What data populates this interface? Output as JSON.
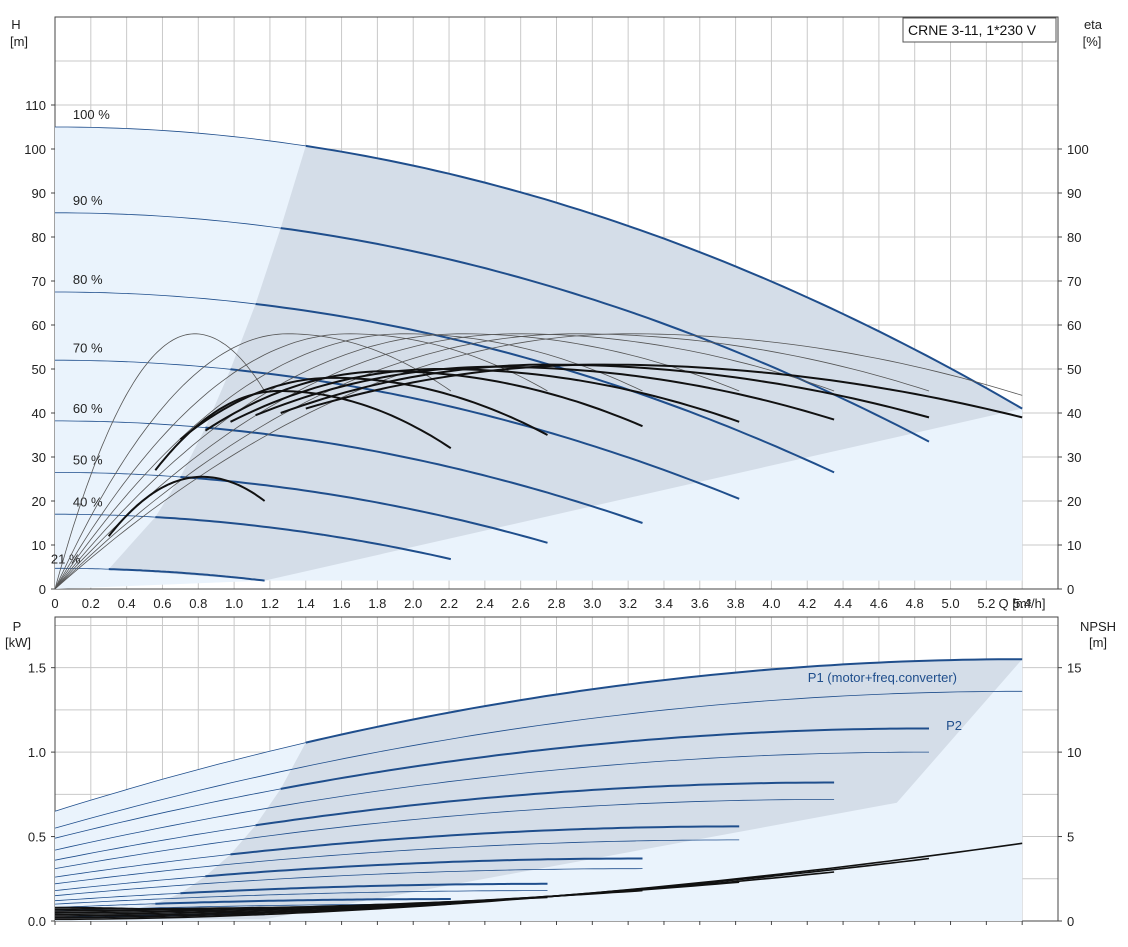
{
  "title_box": "CRNE 3-11, 1*230 V",
  "colors": {
    "curve": "#1f4e8c",
    "eta": "#111111",
    "region_fill": "#d4dde8",
    "region_light": "#eaf3fc",
    "grid": "#c9c9c9"
  },
  "chart_data": [
    {
      "type": "line",
      "title": "",
      "xlabel": "Q [m³/h]",
      "ylabel": "H",
      "ylabel_unit": "[m]",
      "y2label": "eta",
      "y2label_unit": "[%]",
      "xlim": [
        0,
        5.6
      ],
      "ylim": [
        0,
        130
      ],
      "y2lim": [
        0,
        130
      ],
      "grid": true,
      "x_ticks": [
        "0",
        "0.2",
        "0.4",
        "0.6",
        "0.8",
        "1.0",
        "1.2",
        "1.4",
        "1.6",
        "1.8",
        "2.0",
        "2.2",
        "2.4",
        "2.6",
        "2.8",
        "3.0",
        "3.2",
        "3.4",
        "3.6",
        "3.8",
        "4.0",
        "4.2",
        "4.4",
        "4.6",
        "4.8",
        "5.0",
        "5.2",
        "5.4"
      ],
      "y_ticks": [
        "0",
        "10",
        "20",
        "30",
        "40",
        "50",
        "60",
        "70",
        "80",
        "90",
        "100",
        "110"
      ],
      "y2_ticks": [
        "0",
        "10",
        "20",
        "30",
        "40",
        "50",
        "60",
        "70",
        "80",
        "90",
        "100"
      ],
      "head_series": [
        {
          "name": "100 %",
          "H0": 105,
          "Qmax": 5.4,
          "Hend": 41,
          "Qlight": 1.4
        },
        {
          "name": "90 %",
          "H0": 85.5,
          "Qmax": 4.88,
          "Hend": 33.5,
          "Qlight": 1.26
        },
        {
          "name": "80 %",
          "H0": 67.5,
          "Qmax": 4.35,
          "Hend": 26.5,
          "Qlight": 1.12
        },
        {
          "name": "70 %",
          "H0": 52,
          "Qmax": 3.82,
          "Hend": 20.5,
          "Qlight": 0.98
        },
        {
          "name": "60 %",
          "H0": 38.2,
          "Qmax": 3.28,
          "Hend": 15,
          "Qlight": 0.84
        },
        {
          "name": "50 %",
          "H0": 26.5,
          "Qmax": 2.75,
          "Hend": 10.5,
          "Qlight": 0.7
        },
        {
          "name": "40 %",
          "H0": 17,
          "Qmax": 2.21,
          "Hend": 6.8,
          "Qlight": 0.56
        },
        {
          "name": "21 %",
          "H0": 4.7,
          "Qmax": 1.17,
          "Hend": 1.9,
          "Qlight": 0.3
        }
      ],
      "eta_series": [
        {
          "Qmax": 5.4,
          "Qpeak": 3.2,
          "peak": 58,
          "end": 44,
          "Qs": 1.4
        },
        {
          "Qmax": 4.88,
          "Qpeak": 2.9,
          "peak": 58,
          "end": 45,
          "Qs": 1.26
        },
        {
          "Qmax": 4.35,
          "Qpeak": 2.58,
          "peak": 58,
          "end": 45,
          "Qs": 1.12
        },
        {
          "Qmax": 3.82,
          "Qpeak": 2.27,
          "peak": 58,
          "end": 45,
          "Qs": 0.98
        },
        {
          "Qmax": 3.28,
          "Qpeak": 1.95,
          "peak": 58,
          "end": 45,
          "Qs": 0.84
        },
        {
          "Qmax": 2.75,
          "Qpeak": 1.64,
          "peak": 58,
          "end": 45,
          "Qs": 0.7
        },
        {
          "Qmax": 2.21,
          "Qpeak": 1.3,
          "peak": 58,
          "end": 45,
          "Qs": 0.56
        },
        {
          "Qmax": 1.17,
          "Qpeak": 0.78,
          "peak": 58,
          "end": 45,
          "Qs": 0.3
        }
      ],
      "eta_thick": [
        {
          "Qstart": 1.4,
          "Qmax": 5.4,
          "Qpeak": 3.05,
          "peak": 51,
          "start": 41,
          "end": 39
        },
        {
          "Qstart": 1.26,
          "Qmax": 4.88,
          "Qpeak": 2.75,
          "peak": 51,
          "start": 40,
          "end": 39
        },
        {
          "Qstart": 1.12,
          "Qmax": 4.35,
          "Qpeak": 2.45,
          "peak": 50.5,
          "start": 39.5,
          "end": 38.5
        },
        {
          "Qstart": 0.98,
          "Qmax": 3.82,
          "Qpeak": 2.15,
          "peak": 50,
          "start": 38,
          "end": 38
        },
        {
          "Qstart": 0.84,
          "Qmax": 3.28,
          "Qpeak": 1.85,
          "peak": 49.5,
          "start": 36,
          "end": 37
        },
        {
          "Qstart": 0.7,
          "Qmax": 2.75,
          "Qpeak": 1.55,
          "peak": 48,
          "start": 34,
          "end": 35
        },
        {
          "Qstart": 0.56,
          "Qmax": 2.21,
          "Qpeak": 1.25,
          "peak": 45,
          "start": 27,
          "end": 32
        },
        {
          "Qstart": 0.3,
          "Qmax": 1.17,
          "Qpeak": 0.82,
          "peak": 25.5,
          "start": 12,
          "end": 20
        }
      ]
    },
    {
      "type": "line",
      "title": "",
      "ylabel": "P",
      "ylabel_unit": "[kW]",
      "y2label": "NPSH",
      "y2label_unit": "[m]",
      "xlim": [
        0,
        5.6
      ],
      "ylim": [
        0,
        1.8
      ],
      "y2lim": [
        0,
        18
      ],
      "grid": true,
      "y_ticks": [
        "0.0",
        "0.5",
        "1.0",
        "1.5"
      ],
      "y2_ticks": [
        "0",
        "5",
        "10",
        "15"
      ],
      "annotations": [
        "P1 (motor+freq.converter)",
        "P2"
      ],
      "p1_series": [
        {
          "start": 0.65,
          "end": 1.55,
          "Qmax": 5.4,
          "Qlight": 1.4
        },
        {
          "start": 0.49,
          "end": 1.14,
          "Qmax": 4.88,
          "Qlight": 1.26
        },
        {
          "start": 0.36,
          "end": 0.82,
          "Qmax": 4.35,
          "Qlight": 1.12
        },
        {
          "start": 0.26,
          "end": 0.56,
          "Qmax": 3.82,
          "Qlight": 0.98
        },
        {
          "start": 0.18,
          "end": 0.37,
          "Qmax": 3.28,
          "Qlight": 0.84
        },
        {
          "start": 0.12,
          "end": 0.22,
          "Qmax": 2.75,
          "Qlight": 0.7
        },
        {
          "start": 0.08,
          "end": 0.13,
          "Qmax": 2.21,
          "Qlight": 0.56
        },
        {
          "start": 0.02,
          "end": 0.04,
          "Qmax": 1.17,
          "Qlight": 0.3
        }
      ],
      "p2_series": [
        {
          "start": 0.55,
          "end": 1.36,
          "Qmax": 5.4
        },
        {
          "start": 0.42,
          "end": 1.0,
          "Qmax": 4.88
        },
        {
          "start": 0.31,
          "end": 0.72,
          "Qmax": 4.35
        },
        {
          "start": 0.22,
          "end": 0.48,
          "Qmax": 3.82
        },
        {
          "start": 0.15,
          "end": 0.31,
          "Qmax": 3.28
        },
        {
          "start": 0.1,
          "end": 0.18,
          "Qmax": 2.75
        },
        {
          "start": 0.06,
          "end": 0.1,
          "Qmax": 2.21
        }
      ],
      "npsh_series": [
        {
          "start": 0.1,
          "end": 4.6,
          "Qmax": 5.4
        },
        {
          "start": 0.2,
          "end": 3.7,
          "Qmax": 4.88
        },
        {
          "start": 0.3,
          "end": 2.9,
          "Qmax": 4.35
        },
        {
          "start": 0.4,
          "end": 2.3,
          "Qmax": 3.82
        },
        {
          "start": 0.5,
          "end": 1.8,
          "Qmax": 3.28
        },
        {
          "start": 0.6,
          "end": 1.4,
          "Qmax": 2.75
        },
        {
          "start": 0.7,
          "end": 1.0,
          "Qmax": 2.21
        },
        {
          "start": 0.8,
          "end": 0.4,
          "Qmax": 1.17
        }
      ]
    }
  ]
}
